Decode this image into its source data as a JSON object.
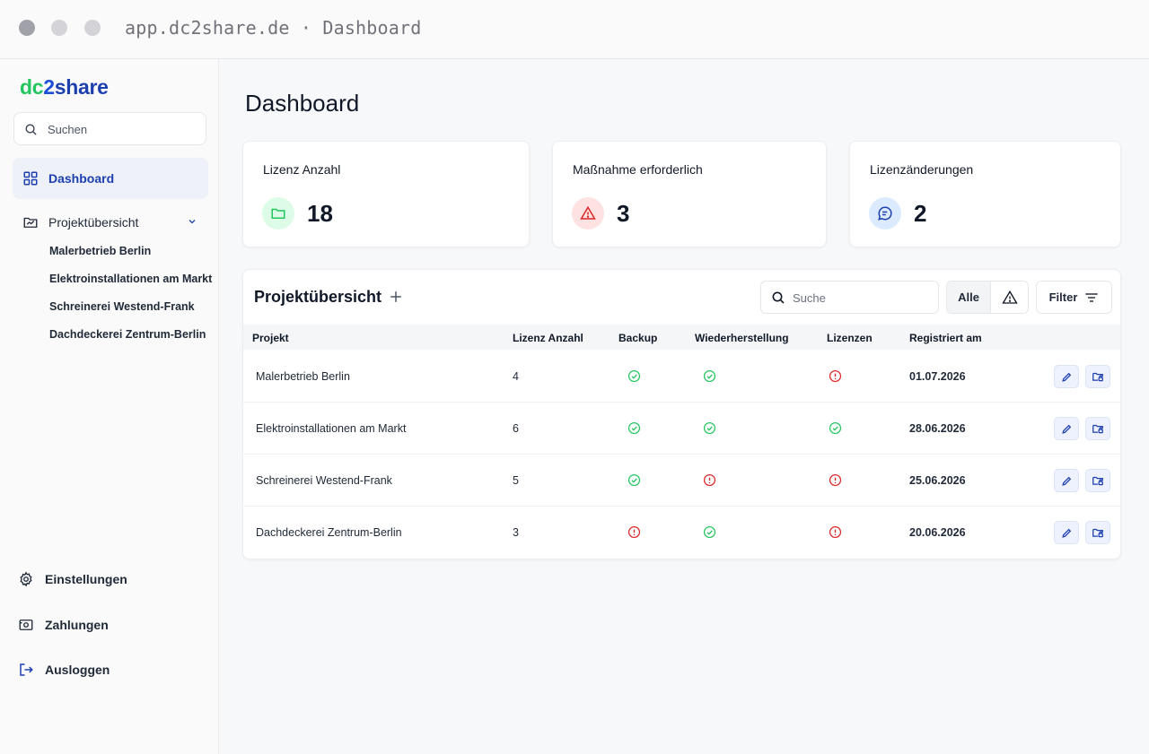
{
  "browser": {
    "url": "app.dc2share.de · Dashboard"
  },
  "sidebar": {
    "logo": {
      "part1": "dc",
      "part2": "2",
      "part3": "share"
    },
    "search_placeholder": "Suchen",
    "nav": {
      "dashboard": "Dashboard",
      "projects": "Projektübersicht"
    },
    "project_links": [
      "Malerbetrieb Berlin",
      "Elektroinstallationen am Markt",
      "Schreinerei Westend-Frank",
      "Dachdeckerei Zentrum-Berlin"
    ],
    "bottom": {
      "settings": "Einstellungen",
      "payments": "Zahlungen",
      "logout": "Ausloggen"
    }
  },
  "main": {
    "title": "Dashboard",
    "stats": [
      {
        "title": "Lizenz Anzahl",
        "value": "18",
        "icon": "folder-icon",
        "color": "#22c55e"
      },
      {
        "title": "Maßnahme erforderlich",
        "value": "3",
        "icon": "warning-icon",
        "color": "#dc2626"
      },
      {
        "title": "Lizenzänderungen",
        "value": "2",
        "icon": "chat-icon",
        "color": "#1e40af"
      }
    ],
    "panel": {
      "title": "Projektübersicht",
      "search_placeholder": "Suche",
      "seg_all": "Alle",
      "filter": "Filter",
      "columns": [
        "Projekt",
        "Lizenz Anzahl",
        "Backup",
        "Wiederherstellung",
        "Lizenzen",
        "Registriert am"
      ],
      "rows": [
        {
          "project": "Malerbetrieb Berlin",
          "licenses": "4",
          "backup": "ok",
          "restore": "ok",
          "lizenzen": "error",
          "registered": "01.07.2026"
        },
        {
          "project": "Elektroinstallationen am Markt",
          "licenses": "6",
          "backup": "ok",
          "restore": "ok",
          "lizenzen": "ok",
          "registered": "28.06.2026"
        },
        {
          "project": "Schreinerei Westend-Frank",
          "licenses": "5",
          "backup": "ok",
          "restore": "error",
          "lizenzen": "error",
          "registered": "25.06.2026"
        },
        {
          "project": "Dachdeckerei Zentrum-Berlin",
          "licenses": "3",
          "backup": "error",
          "restore": "ok",
          "lizenzen": "error",
          "registered": "20.06.2026"
        }
      ]
    }
  },
  "colors": {
    "ok": "#22c55e",
    "error": "#dc2626",
    "brand": "#1e40af"
  }
}
